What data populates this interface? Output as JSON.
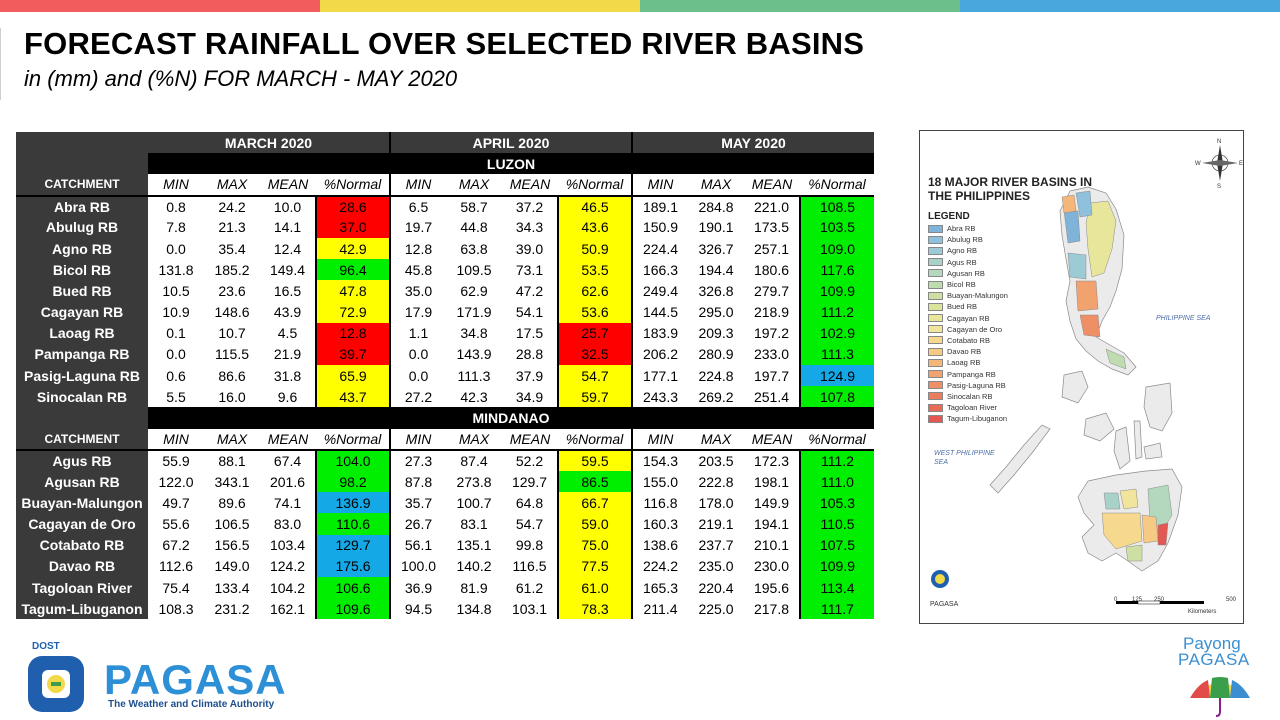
{
  "colors": {
    "red": "#ff0000",
    "yellow": "#ffff00",
    "green": "#00ee00",
    "blue": "#14a9e6",
    "header_dark": "#3a3a3a",
    "topbar": [
      "#f25c5c",
      "#f2d94a",
      "#6cbf8a",
      "#4aa7de"
    ]
  },
  "header": {
    "title": "FORECAST RAINFALL OVER SELECTED RIVER BASINS",
    "subtitle": "in (mm) and (%N) FOR MARCH - MAY 2020"
  },
  "table": {
    "months": [
      "MARCH 2020",
      "APRIL 2020",
      "MAY 2020"
    ],
    "col_catchment": "CATCHMENT",
    "col_headers": [
      "MIN",
      "MAX",
      "MEAN",
      "%Normal"
    ],
    "regions": [
      {
        "name": "LUZON",
        "rows": [
          {
            "name": "Abra RB",
            "vals": [
              "0.8",
              "24.2",
              "10.0",
              "28.6",
              "6.5",
              "58.7",
              "37.2",
              "46.5",
              "189.1",
              "284.8",
              "221.0",
              "108.5"
            ],
            "cls": [
              "red",
              "yellow",
              "green"
            ]
          },
          {
            "name": "Abulug RB",
            "vals": [
              "7.8",
              "21.3",
              "14.1",
              "37.0",
              "19.7",
              "44.8",
              "34.3",
              "43.6",
              "150.9",
              "190.1",
              "173.5",
              "103.5"
            ],
            "cls": [
              "red",
              "yellow",
              "green"
            ]
          },
          {
            "name": "Agno RB",
            "vals": [
              "0.0",
              "35.4",
              "12.4",
              "42.9",
              "12.8",
              "63.8",
              "39.0",
              "50.9",
              "224.4",
              "326.7",
              "257.1",
              "109.0"
            ],
            "cls": [
              "yellow",
              "yellow",
              "green"
            ]
          },
          {
            "name": "Bicol RB",
            "vals": [
              "131.8",
              "185.2",
              "149.4",
              "96.4",
              "45.8",
              "109.5",
              "73.1",
              "53.5",
              "166.3",
              "194.4",
              "180.6",
              "117.6"
            ],
            "cls": [
              "green",
              "yellow",
              "green"
            ]
          },
          {
            "name": "Bued RB",
            "vals": [
              "10.5",
              "23.6",
              "16.5",
              "47.8",
              "35.0",
              "62.9",
              "47.2",
              "62.6",
              "249.4",
              "326.8",
              "279.7",
              "109.9"
            ],
            "cls": [
              "yellow",
              "yellow",
              "green"
            ]
          },
          {
            "name": "Cagayan RB",
            "vals": [
              "10.9",
              "148.6",
              "43.9",
              "72.9",
              "17.9",
              "171.9",
              "54.1",
              "53.6",
              "144.5",
              "295.0",
              "218.9",
              "111.2"
            ],
            "cls": [
              "yellow",
              "yellow",
              "green"
            ]
          },
          {
            "name": "Laoag RB",
            "vals": [
              "0.1",
              "10.7",
              "4.5",
              "12.8",
              "1.1",
              "34.8",
              "17.5",
              "25.7",
              "183.9",
              "209.3",
              "197.2",
              "102.9"
            ],
            "cls": [
              "red",
              "red",
              "green"
            ]
          },
          {
            "name": "Pampanga RB",
            "vals": [
              "0.0",
              "115.5",
              "21.9",
              "39.7",
              "0.0",
              "143.9",
              "28.8",
              "32.5",
              "206.2",
              "280.9",
              "233.0",
              "111.3"
            ],
            "cls": [
              "red",
              "red",
              "green"
            ]
          },
          {
            "name": "Pasig-Laguna RB",
            "vals": [
              "0.6",
              "86.6",
              "31.8",
              "65.9",
              "0.0",
              "111.3",
              "37.9",
              "54.7",
              "177.1",
              "224.8",
              "197.7",
              "124.9"
            ],
            "cls": [
              "yellow",
              "yellow",
              "blue"
            ]
          },
          {
            "name": "Sinocalan RB",
            "vals": [
              "5.5",
              "16.0",
              "9.6",
              "43.7",
              "27.2",
              "42.3",
              "34.9",
              "59.7",
              "243.3",
              "269.2",
              "251.4",
              "107.8"
            ],
            "cls": [
              "yellow",
              "yellow",
              "green"
            ]
          }
        ]
      },
      {
        "name": "MINDANAO",
        "rows": [
          {
            "name": "Agus RB",
            "vals": [
              "55.9",
              "88.1",
              "67.4",
              "104.0",
              "27.3",
              "87.4",
              "52.2",
              "59.5",
              "154.3",
              "203.5",
              "172.3",
              "111.2"
            ],
            "cls": [
              "green",
              "yellow",
              "green"
            ]
          },
          {
            "name": "Agusan RB",
            "vals": [
              "122.0",
              "343.1",
              "201.6",
              "98.2",
              "87.8",
              "273.8",
              "129.7",
              "86.5",
              "155.0",
              "222.8",
              "198.1",
              "111.0"
            ],
            "cls": [
              "green",
              "green",
              "green"
            ]
          },
          {
            "name": "Buayan-Malungon",
            "vals": [
              "49.7",
              "89.6",
              "74.1",
              "136.9",
              "35.7",
              "100.7",
              "64.8",
              "66.7",
              "116.8",
              "178.0",
              "149.9",
              "105.3"
            ],
            "cls": [
              "blue",
              "yellow",
              "green"
            ]
          },
          {
            "name": "Cagayan de Oro",
            "vals": [
              "55.6",
              "106.5",
              "83.0",
              "110.6",
              "26.7",
              "83.1",
              "54.7",
              "59.0",
              "160.3",
              "219.1",
              "194.1",
              "110.5"
            ],
            "cls": [
              "green",
              "yellow",
              "green"
            ]
          },
          {
            "name": "Cotabato RB",
            "vals": [
              "67.2",
              "156.5",
              "103.4",
              "129.7",
              "56.1",
              "135.1",
              "99.8",
              "75.0",
              "138.6",
              "237.7",
              "210.1",
              "107.5"
            ],
            "cls": [
              "blue",
              "yellow",
              "green"
            ]
          },
          {
            "name": "Davao RB",
            "vals": [
              "112.6",
              "149.0",
              "124.2",
              "175.6",
              "100.0",
              "140.2",
              "116.5",
              "77.5",
              "224.2",
              "235.0",
              "230.0",
              "109.9"
            ],
            "cls": [
              "blue",
              "yellow",
              "green"
            ]
          },
          {
            "name": "Tagoloan River",
            "vals": [
              "75.4",
              "133.4",
              "104.2",
              "106.6",
              "36.9",
              "81.9",
              "61.2",
              "61.0",
              "165.3",
              "220.4",
              "195.6",
              "113.4"
            ],
            "cls": [
              "green",
              "yellow",
              "green"
            ]
          },
          {
            "name": "Tagum-Libuganon",
            "vals": [
              "108.3",
              "231.2",
              "162.1",
              "109.6",
              "94.5",
              "134.8",
              "103.1",
              "78.3",
              "211.4",
              "225.0",
              "217.8",
              "111.7"
            ],
            "cls": [
              "green",
              "yellow",
              "green"
            ]
          }
        ]
      }
    ]
  },
  "map": {
    "title": "18 MAJOR RIVER BASINS IN THE PHILIPPINES",
    "legend_title": "LEGEND",
    "legend": [
      {
        "label": "Abra RB",
        "color": "#7fb3d9"
      },
      {
        "label": "Abulug RB",
        "color": "#8fc1dd"
      },
      {
        "label": "Agno RB",
        "color": "#9ccbd6"
      },
      {
        "label": "Agus RB",
        "color": "#a8d2c9"
      },
      {
        "label": "Agusan RB",
        "color": "#b3d8bd"
      },
      {
        "label": "Bicol RB",
        "color": "#bfdcb0"
      },
      {
        "label": "Buayan-Malungon",
        "color": "#cde0a2"
      },
      {
        "label": "Bued RB",
        "color": "#dbe49a"
      },
      {
        "label": "Cagayan RB",
        "color": "#e8e69a"
      },
      {
        "label": "Cagayan de Oro",
        "color": "#f1e49c"
      },
      {
        "label": "Cotabato RB",
        "color": "#f6d98f"
      },
      {
        "label": "Davao RB",
        "color": "#f6c985"
      },
      {
        "label": "Laoag RB",
        "color": "#f4b679"
      },
      {
        "label": "Pampanga RB",
        "color": "#f1a26f"
      },
      {
        "label": "Pasig-Laguna RB",
        "color": "#ee8f66"
      },
      {
        "label": "Sinocalan RB",
        "color": "#eb7c5e"
      },
      {
        "label": "Tagoloan River",
        "color": "#e86a57"
      },
      {
        "label": "Tagum-Libuganon",
        "color": "#e45752"
      }
    ],
    "sea_east": "PHILIPPINE SEA",
    "sea_west": "WEST PHILIPPINE SEA",
    "logo_text": "PAGASA",
    "scale": [
      "0",
      "125",
      "250",
      "500"
    ],
    "scale_unit": "Kilometers",
    "compass": [
      "N",
      "S",
      "E",
      "W"
    ]
  },
  "footer": {
    "dost": "DOST",
    "brand": "PAGASA",
    "tagline": "The Weather and Climate Authority",
    "payong1": "Payong",
    "payong2": "PAGASA"
  }
}
